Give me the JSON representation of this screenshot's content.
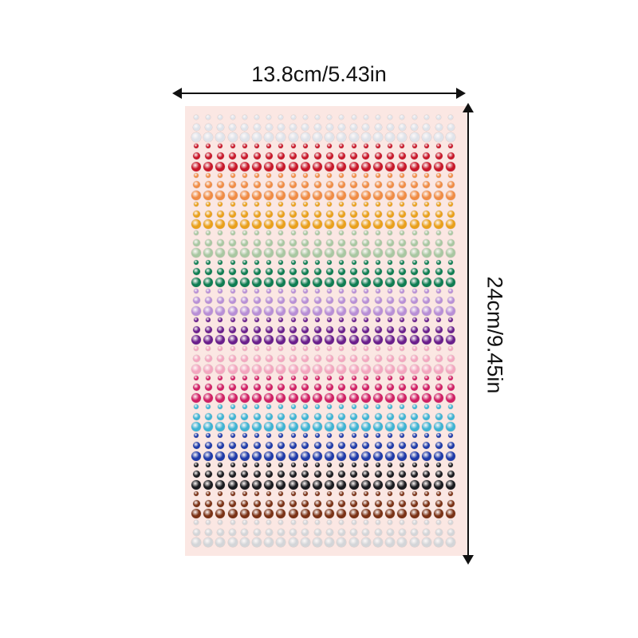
{
  "dimensions": {
    "width_label": "13.8cm/5.43in",
    "height_label": "24cm/9.45in"
  },
  "sheet": {
    "background": "#fbe7e3",
    "columns": 22,
    "rows_per_color": 3,
    "color_groups": [
      {
        "name": "clear-ab",
        "color": "#dfe3ea"
      },
      {
        "name": "red",
        "color": "#c8182a"
      },
      {
        "name": "orange",
        "color": "#f08c45"
      },
      {
        "name": "gold",
        "color": "#e9a01c"
      },
      {
        "name": "light-green",
        "color": "#a9c7a2"
      },
      {
        "name": "emerald",
        "color": "#0f7d52"
      },
      {
        "name": "lavender",
        "color": "#b88fd6"
      },
      {
        "name": "purple",
        "color": "#6a1f8c"
      },
      {
        "name": "pink",
        "color": "#f3a6bf"
      },
      {
        "name": "fuchsia",
        "color": "#d01f64"
      },
      {
        "name": "aqua",
        "color": "#3fb3d3"
      },
      {
        "name": "blue",
        "color": "#1f3aa8"
      },
      {
        "name": "black",
        "color": "#1b1b1f"
      },
      {
        "name": "brown",
        "color": "#7a3216"
      },
      {
        "name": "clear",
        "color": "#d3d5d8"
      }
    ]
  }
}
